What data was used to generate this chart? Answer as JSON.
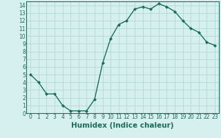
{
  "x": [
    0,
    1,
    2,
    3,
    4,
    5,
    6,
    7,
    8,
    9,
    10,
    11,
    12,
    13,
    14,
    15,
    16,
    17,
    18,
    19,
    20,
    21,
    22,
    23
  ],
  "y": [
    5.0,
    4.0,
    2.5,
    2.5,
    1.0,
    0.3,
    0.3,
    0.3,
    1.8,
    6.5,
    9.7,
    11.5,
    12.0,
    13.5,
    13.8,
    13.5,
    14.2,
    13.8,
    13.2,
    12.0,
    11.0,
    10.5,
    9.2,
    8.8
  ],
  "line_color": "#1a6b5a",
  "marker": "D",
  "marker_size": 2.0,
  "bg_color": "#d6f0ef",
  "grid_color": "#b0d8d8",
  "xlabel": "Humidex (Indice chaleur)",
  "xlim": [
    -0.5,
    23.5
  ],
  "ylim": [
    0,
    14.5
  ],
  "yticks": [
    0,
    1,
    2,
    3,
    4,
    5,
    6,
    7,
    8,
    9,
    10,
    11,
    12,
    13,
    14
  ],
  "xticks": [
    0,
    1,
    2,
    3,
    4,
    5,
    6,
    7,
    8,
    9,
    10,
    11,
    12,
    13,
    14,
    15,
    16,
    17,
    18,
    19,
    20,
    21,
    22,
    23
  ],
  "tick_fontsize": 5.5,
  "xlabel_fontsize": 7.5,
  "spine_color": "#1a6b5a"
}
